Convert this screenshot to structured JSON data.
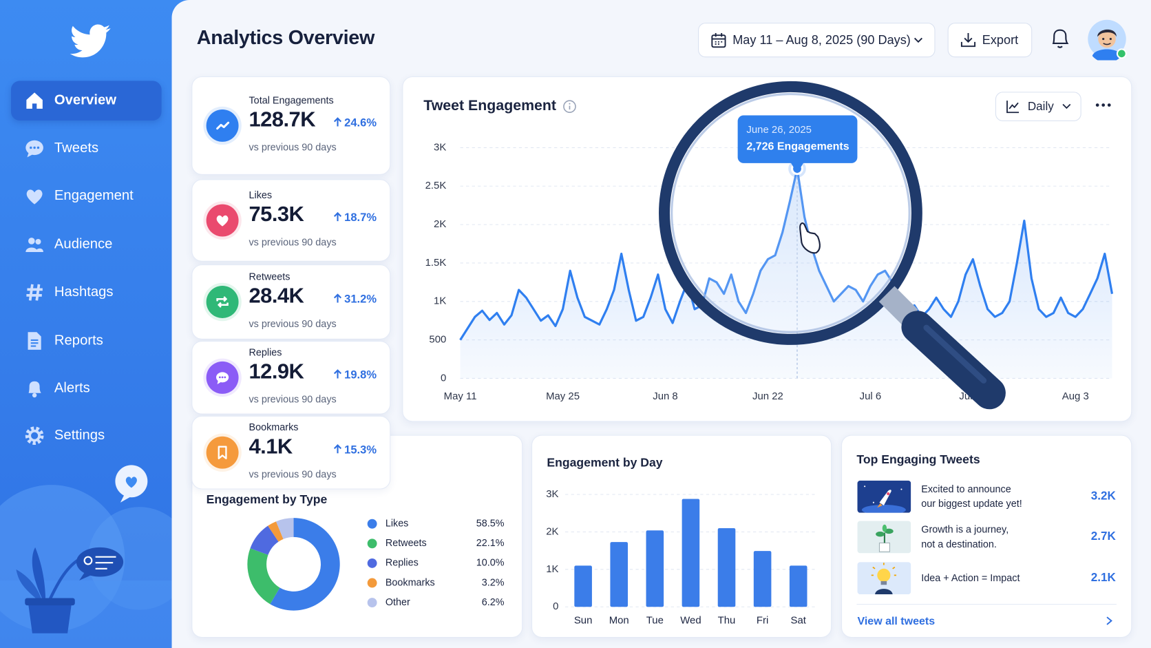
{
  "sidebar": {
    "nav": [
      "Overview",
      "Tweets",
      "Engagement",
      "Audience",
      "Hashtags",
      "Reports",
      "Alerts",
      "Settings"
    ]
  },
  "header": {
    "title": "Analytics Overview",
    "date_range": "May 11 – Aug 8, 2025 (90 Days)",
    "export": "Export"
  },
  "kpis": [
    {
      "title": "Total Engagements",
      "value": "128.7K",
      "change": "24.6%",
      "note": "vs previous 90 days"
    },
    {
      "title": "Likes",
      "value": "75.3K",
      "change": "18.7%",
      "note": "vs previous 90 days"
    },
    {
      "title": "Retweets",
      "value": "28.4K",
      "change": "31.2%",
      "note": "vs previous 90 days"
    },
    {
      "title": "Replies",
      "value": "12.9K",
      "change": "19.8%",
      "note": "vs previous 90 days"
    },
    {
      "title": "Bookmarks",
      "value": "4.1K",
      "change": "15.3%",
      "note": "vs previous 90 days"
    }
  ],
  "chart_data": [
    {
      "type": "line",
      "title": "Tweet Engagement",
      "period": "Daily",
      "color": "#2f7ff0",
      "categories": [
        "May 11",
        null,
        null,
        null,
        null,
        null,
        null,
        null,
        null,
        null,
        null,
        null,
        null,
        null,
        "May 25",
        null,
        null,
        null,
        null,
        null,
        null,
        null,
        null,
        null,
        null,
        null,
        null,
        null,
        "Jun 8",
        null,
        null,
        null,
        null,
        null,
        null,
        null,
        null,
        null,
        null,
        null,
        null,
        null,
        "Jun 22",
        null,
        null,
        null,
        null,
        null,
        null,
        null,
        null,
        null,
        null,
        null,
        null,
        null,
        "Jul 6",
        null,
        null,
        null,
        null,
        null,
        null,
        null,
        null,
        null,
        null,
        null,
        null,
        null,
        "Jul 20",
        null,
        null,
        null,
        null,
        null,
        null,
        null,
        null,
        null,
        null,
        null,
        null,
        null,
        "Aug 3",
        null,
        null,
        null,
        null,
        null
      ],
      "values": [
        500,
        650,
        800,
        880,
        760,
        850,
        700,
        820,
        1150,
        1050,
        900,
        750,
        820,
        680,
        900,
        1400,
        1050,
        800,
        750,
        700,
        900,
        1150,
        1620,
        1150,
        750,
        800,
        1050,
        1350,
        900,
        720,
        1000,
        1250,
        900,
        950,
        1300,
        1250,
        1100,
        1350,
        1000,
        850,
        1100,
        1400,
        1550,
        1600,
        1900,
        2300,
        2726,
        2100,
        1700,
        1400,
        1200,
        1000,
        1100,
        1200,
        1150,
        1000,
        1200,
        1350,
        1400,
        1250,
        1050,
        850,
        950,
        800,
        900,
        1050,
        900,
        800,
        1000,
        1350,
        1550,
        1200,
        900,
        800,
        850,
        1000,
        1500,
        2050,
        1300,
        900,
        800,
        850,
        1050,
        850,
        800,
        900,
        1100,
        1300,
        1620,
        1100
      ],
      "ylim": [
        0,
        3000
      ],
      "yticks": [
        0,
        500,
        {
          "value": 1000,
          "label": "1K"
        },
        {
          "value": 1500,
          "label": "1.5K"
        },
        {
          "value": 2000,
          "label": "2K"
        },
        {
          "value": 2500,
          "label": "2.5K"
        },
        {
          "value": 3000,
          "label": "3K"
        }
      ],
      "grid": true,
      "tooltip": {
        "category": "June 26, 2025",
        "value": 2726,
        "label": "2,726 Engagements"
      }
    },
    {
      "type": "pie",
      "title": "Engagement by Type",
      "categories": [
        "Likes",
        "Retweets",
        "Replies",
        "Bookmarks",
        "Other"
      ],
      "values": [
        58.5,
        22.1,
        10.0,
        3.2,
        6.2
      ],
      "value_labels": [
        "58.5%",
        "22.1%",
        "10.0%",
        "3.2%",
        "6.2%"
      ],
      "colors": [
        "#3b7de9",
        "#3dbd6b",
        "#4f6ae0",
        "#f39a3b",
        "#b7c3ec"
      ]
    },
    {
      "type": "bar",
      "title": "Engagement by Day",
      "color": "#3b7de9",
      "categories": [
        "Sun",
        "Mon",
        "Tue",
        "Wed",
        "Thu",
        "Fri",
        "Sat"
      ],
      "values": [
        1100,
        1730,
        2040,
        2880,
        2100,
        1490,
        1100
      ],
      "ylim": [
        0,
        3000
      ],
      "yticks": [
        0,
        {
          "value": 1000,
          "label": "1K"
        },
        {
          "value": 2000,
          "label": "2K"
        },
        {
          "value": 3000,
          "label": "3K"
        }
      ],
      "grid": true
    }
  ],
  "top_tweets": {
    "title": "Top Engaging Tweets",
    "tweets": [
      {
        "text": "Excited to announce our biggest update yet!",
        "value": "3.2K"
      },
      {
        "text": "Growth is a journey, not a destination.",
        "value": "2.7K"
      },
      {
        "text": "Idea + Action = Impact",
        "value": "2.1K"
      }
    ],
    "link": "View all tweets"
  }
}
